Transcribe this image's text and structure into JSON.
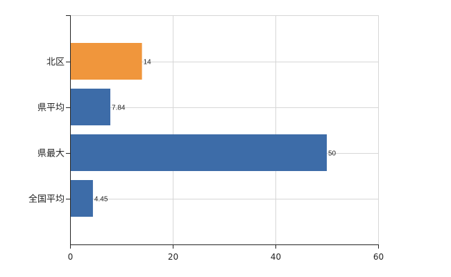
{
  "chart_data": {
    "type": "bar",
    "orientation": "horizontal",
    "categories": [
      "北区",
      "県平均",
      "県最大",
      "全国平均"
    ],
    "values": [
      14,
      7.84,
      50,
      4.45
    ],
    "value_labels": [
      "14",
      "7.84",
      "50",
      "4.45"
    ],
    "bar_colors": [
      "#f0963c",
      "#3d6ca8",
      "#3d6ca8",
      "#3d6ca8"
    ],
    "xlim": [
      0,
      60
    ],
    "xticks": [
      0,
      20,
      40,
      60
    ],
    "xtick_labels": [
      "0",
      "20",
      "40",
      "60"
    ],
    "grid": true,
    "grid_color": "#d6d6d6",
    "axis_color": "#222222",
    "title": "",
    "xlabel": "",
    "ylabel": ""
  }
}
